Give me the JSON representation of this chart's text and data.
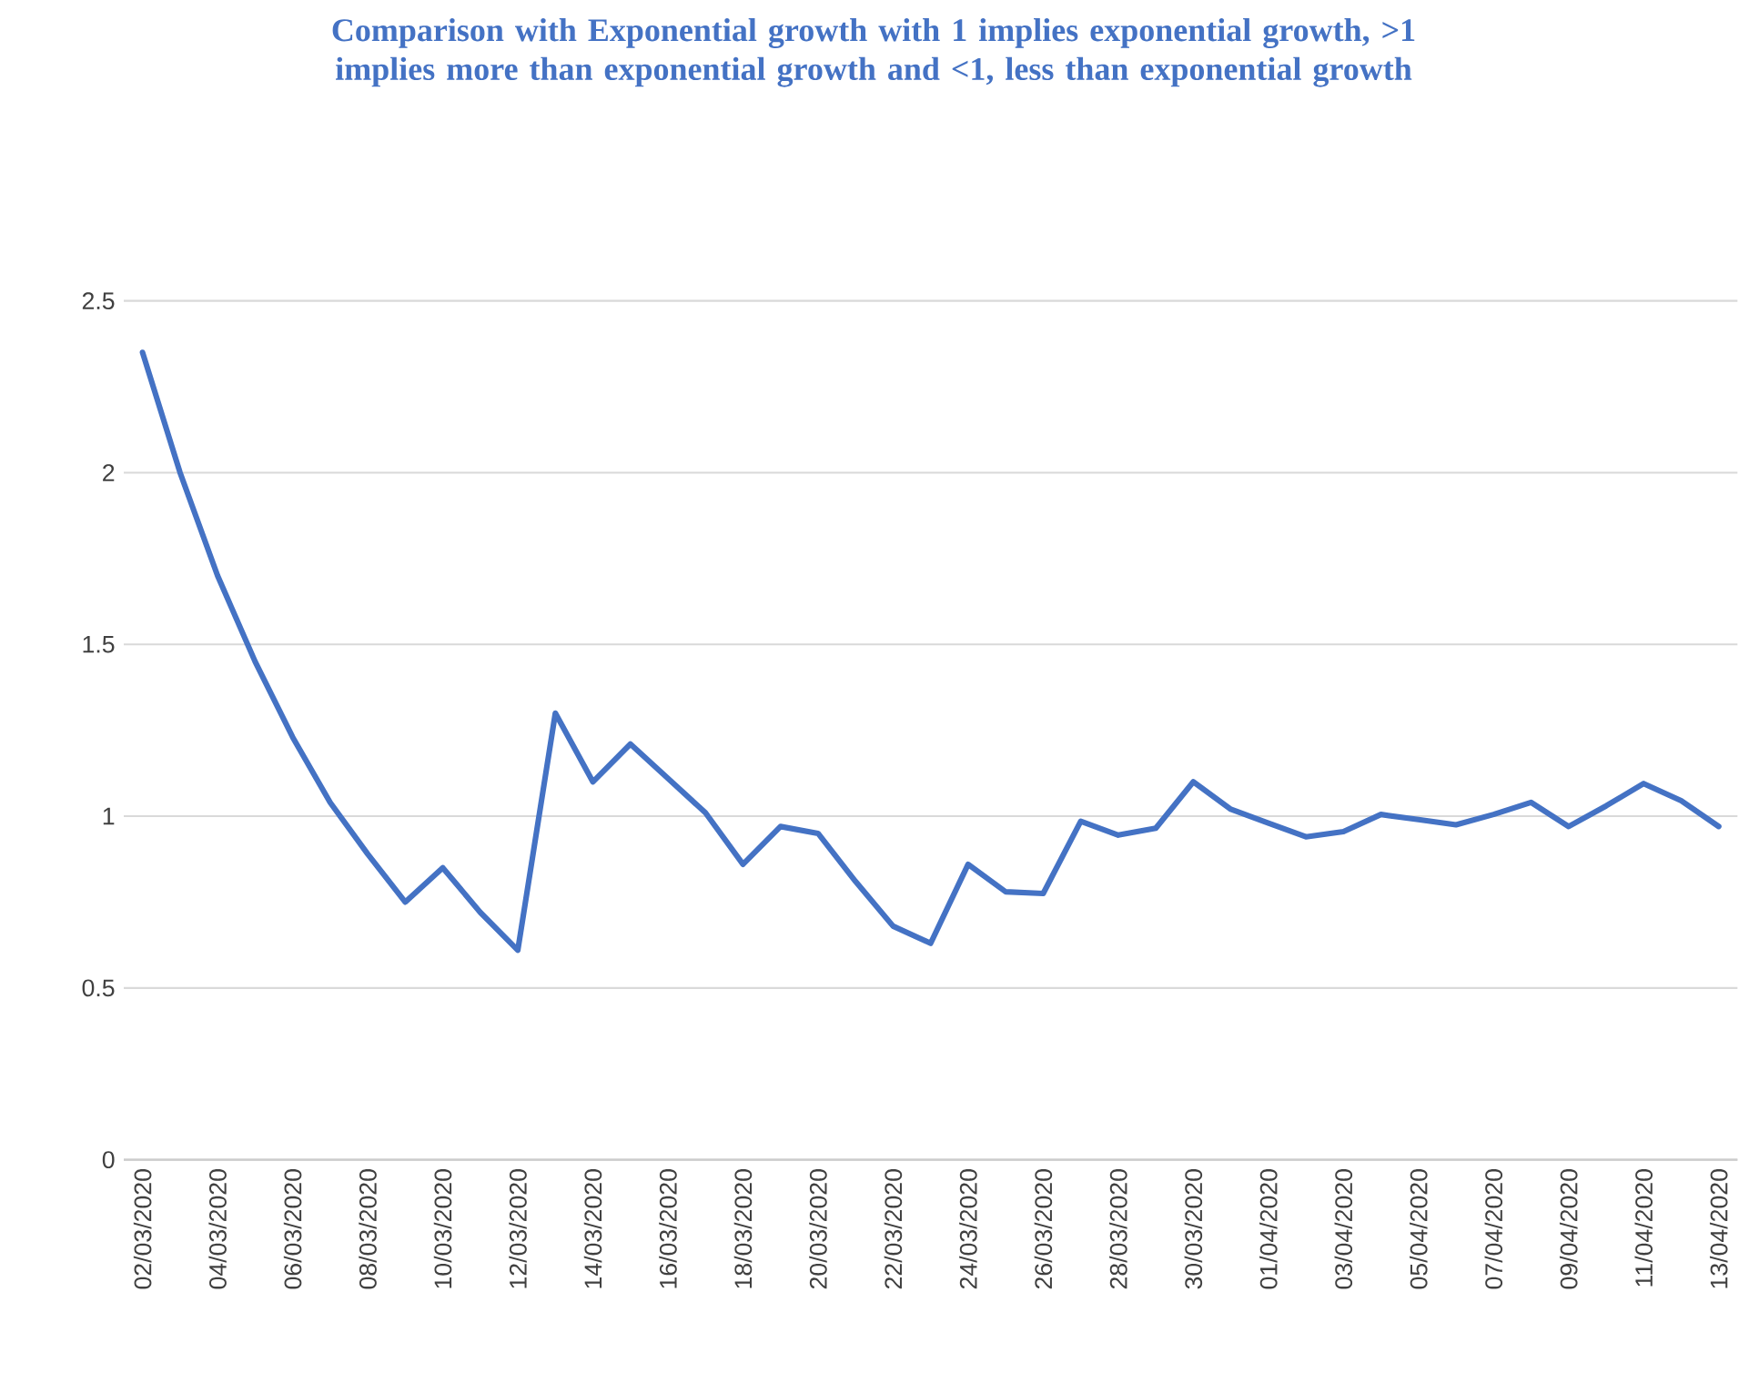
{
  "chart_data": {
    "type": "line",
    "title": "Comparison with Exponential growth with 1 implies exponential growth, >1 implies more than exponential growth and <1, less than exponential growth",
    "categories": [
      "02/03/2020",
      null,
      "04/03/2020",
      null,
      "06/03/2020",
      null,
      "08/03/2020",
      null,
      "10/03/2020",
      null,
      "12/03/2020",
      null,
      "14/03/2020",
      null,
      "16/03/2020",
      null,
      "18/03/2020",
      null,
      "20/03/2020",
      null,
      "22/03/2020",
      null,
      "24/03/2020",
      null,
      "26/03/2020",
      null,
      "28/03/2020",
      null,
      "30/03/2020",
      null,
      "01/04/2020",
      null,
      "03/04/2020",
      null,
      "05/04/2020",
      null,
      "07/04/2020",
      null,
      "09/04/2020",
      null,
      "11/04/2020",
      null,
      "13/04/2020"
    ],
    "series": [
      {
        "color": "#4472c4",
        "values": [
          2.35,
          2.0,
          1.7,
          1.45,
          1.23,
          1.04,
          0.89,
          0.75,
          0.85,
          0.72,
          0.61,
          1.3,
          1.1,
          1.21,
          1.11,
          1.01,
          0.86,
          0.97,
          0.95,
          0.81,
          0.68,
          0.63,
          0.86,
          0.78,
          0.775,
          0.985,
          0.945,
          0.965,
          1.1,
          1.02,
          0.98,
          0.94,
          0.955,
          1.005,
          0.99,
          0.975,
          1.005,
          1.04,
          0.97,
          1.03,
          1.095,
          1.045,
          0.97
        ]
      }
    ],
    "ylim": [
      0,
      2.5
    ],
    "yticks": [
      0,
      0.5,
      1,
      1.5,
      2,
      2.5
    ],
    "grid": "y"
  }
}
